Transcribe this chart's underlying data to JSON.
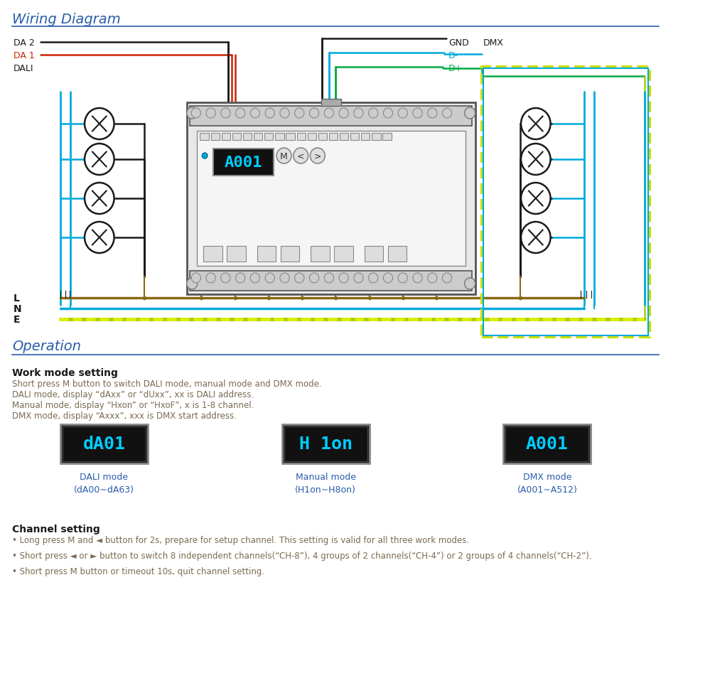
{
  "title": "Wiring Diagram",
  "section2_title": "Operation",
  "bg_color": "#ffffff",
  "title_color": "#2a5caa",
  "divider_color": "#2a5caa",
  "body_text_color": "#7a6a50",
  "heading_color": "#1a1a1a",
  "cyan_color": "#00aadd",
  "red_color": "#cc2200",
  "green_color": "#00aa44",
  "black_color": "#1a1a1a",
  "brown_color": "#8B6914",
  "blue_color": "#007bbb",
  "yellow_green_color": "#ccdd00",
  "display_bg": "#111111",
  "display_text_color": "#00ccff",
  "work_mode_lines": [
    "Short press M button to switch DALI mode, manual mode and DMX mode.",
    "DALI mode, display “dAxx” or “dUxx”, xx is DALI address.",
    "Manual mode, display “Hxon” or “HxoF”, x is 1-8 channel.",
    "DMX mode, display “Axxx”, xxx is DMX start address."
  ],
  "display_labels": [
    "dA01",
    "H 1on",
    "A001"
  ],
  "display_captions": [
    "DALI mode\n(dA00~dA63)",
    "Manual mode\n(H1on~H8on)",
    "DMX mode\n(A001~A512)"
  ],
  "channel_lines": [
    "• Long press M and ◄ button for 2s, prepare for setup channel. This setting is valid for all three work modes.",
    "• Short press ◄ or ► button to switch 8 independent channels(“CH-8”), 4 groups of 2 channels(“CH-4”) or 2 groups of 4 channels(“CH-2”).",
    "• Short press M button or timeout 10s, quit channel setting."
  ]
}
